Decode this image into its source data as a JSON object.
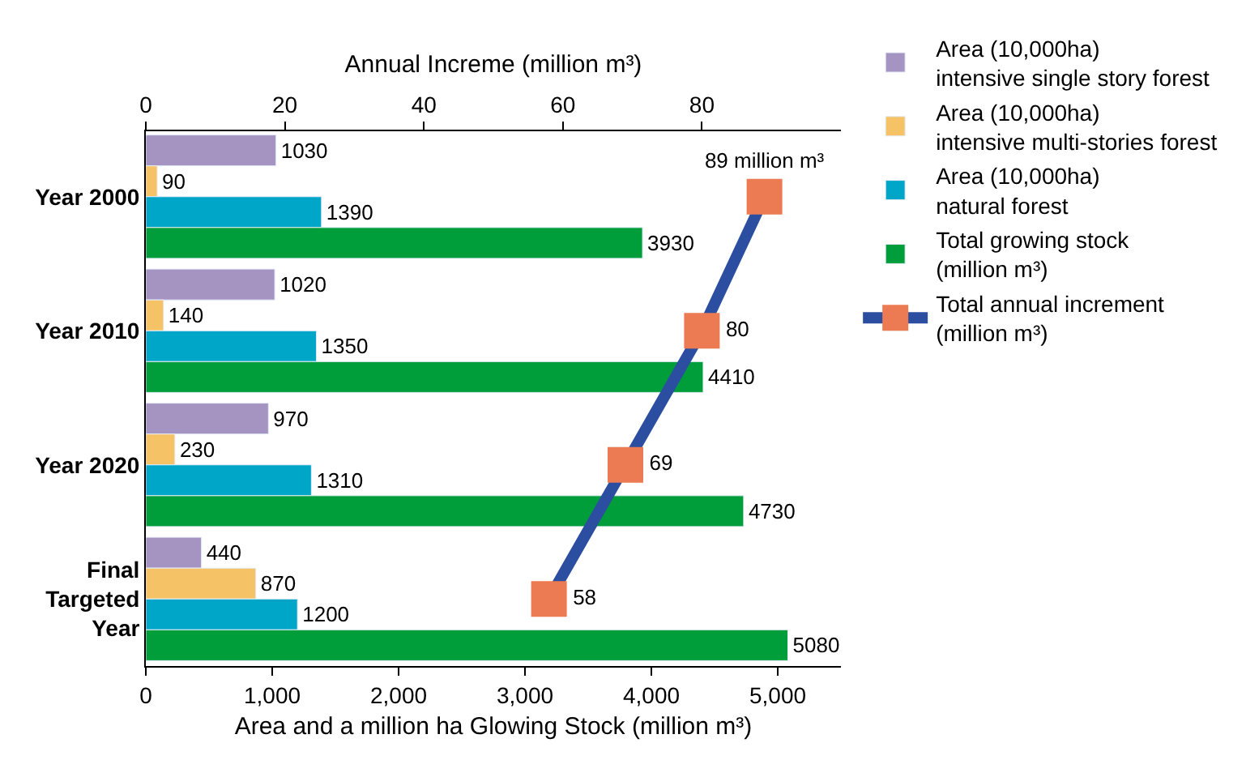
{
  "chart_data": {
    "type": "bar",
    "orientation": "horizontal",
    "xlabel": "Area and a million ha Glowing Stock (million m³)",
    "x2label": "Annual Increme (million m³)",
    "categories": [
      "Year 2000",
      "Year 2010",
      "Year 2020",
      "Final Targeted Year"
    ],
    "xlim": [
      0,
      5500
    ],
    "xticks": [
      0,
      {
        "value": 1000,
        "label": "1,000"
      },
      {
        "value": 2000,
        "label": "2,000"
      },
      {
        "value": 3000,
        "label": "3,000"
      },
      {
        "value": 4000,
        "label": "4,000"
      },
      {
        "value": 5000,
        "label": "5,000"
      }
    ],
    "x2lim": [
      0,
      100
    ],
    "x2ticks": [
      0,
      20,
      40,
      60,
      80
    ],
    "data_labels": true,
    "legend": "top right",
    "marker": "square",
    "line_style": "solid",
    "series": [
      {
        "name": "Area (10,000ha)\nintensive single story forest",
        "color": "#a593c2",
        "values": [
          1030,
          1020,
          970,
          440
        ]
      },
      {
        "name": "Area (10,000ha)\nintensive multi-stories forest",
        "color": "#f5c266",
        "values": [
          90,
          140,
          230,
          870
        ]
      },
      {
        "name": "Area (10,000ha)\nnatural forest",
        "color": "#00a6c8",
        "values": [
          1390,
          1350,
          1310,
          1200
        ]
      },
      {
        "name": "Total growing stock\n(million m³)",
        "color": "#009e3b",
        "values": [
          3930,
          4410,
          4730,
          5080
        ]
      },
      {
        "name": "Total annual increment\n(million m³)",
        "type": "line",
        "axis": "x2",
        "color": "#2b4ea0",
        "colors": [
          "#ec7a52",
          "#ec7a52",
          "#ec7a52",
          "#ec7a52"
        ],
        "values": [
          89,
          80,
          69,
          58
        ],
        "value_labels": [
          "89 million m³",
          "80",
          "69",
          "58"
        ]
      }
    ]
  }
}
